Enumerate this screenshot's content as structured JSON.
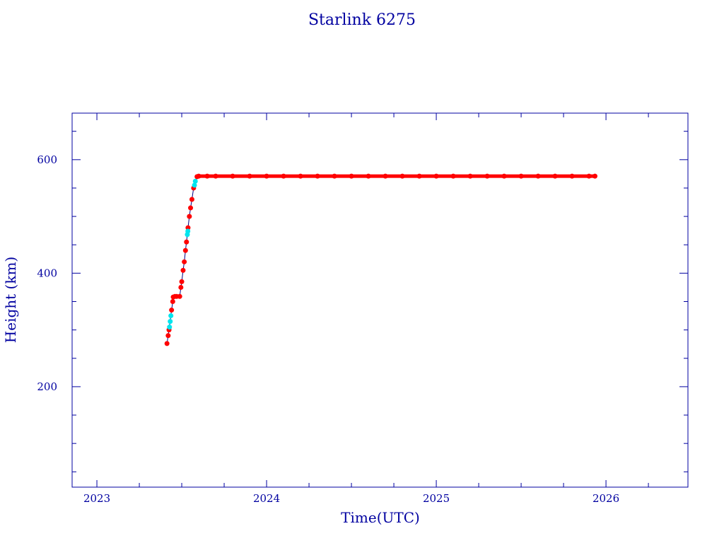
{
  "chart_data": {
    "type": "scatter",
    "title": "Starlink 6275",
    "xlabel": "Time(UTC)",
    "ylabel": "Height (km)",
    "xlim": [
      2022.854,
      2026.483
    ],
    "ylim": [
      23,
      682
    ],
    "xticks": [
      "2023",
      "2024",
      "2025",
      "2026"
    ],
    "xtick_values": [
      2023,
      2024,
      2025,
      2026
    ],
    "yticks": [
      "200",
      "400",
      "600"
    ],
    "ytick_values": [
      200,
      400,
      600
    ],
    "colors": {
      "axis": "#0000a0",
      "primary": "#ff0000",
      "secondary": "#00e5ee",
      "line": "#000080"
    },
    "series": [
      {
        "name": "tracked",
        "color": "#ff0000",
        "points": [
          [
            2023.413,
            276
          ],
          [
            2023.42,
            290
          ],
          [
            2023.425,
            300
          ],
          [
            2023.44,
            335
          ],
          [
            2023.447,
            350
          ],
          [
            2023.45,
            358
          ],
          [
            2023.46,
            359
          ],
          [
            2023.47,
            359
          ],
          [
            2023.488,
            359
          ],
          [
            2023.495,
            375
          ],
          [
            2023.5,
            385
          ],
          [
            2023.508,
            405
          ],
          [
            2023.515,
            420
          ],
          [
            2023.522,
            440
          ],
          [
            2023.528,
            455
          ],
          [
            2023.537,
            480
          ],
          [
            2023.545,
            500
          ],
          [
            2023.552,
            515
          ],
          [
            2023.56,
            530
          ],
          [
            2023.57,
            550
          ],
          [
            2023.59,
            570
          ],
          [
            2023.6,
            571
          ],
          [
            2023.65,
            571
          ],
          [
            2023.7,
            571
          ],
          [
            2023.8,
            571
          ],
          [
            2023.9,
            571
          ],
          [
            2024.0,
            571
          ],
          [
            2024.1,
            571
          ],
          [
            2024.2,
            571
          ],
          [
            2024.3,
            571
          ],
          [
            2024.4,
            571
          ],
          [
            2024.5,
            571
          ],
          [
            2024.6,
            571
          ],
          [
            2024.7,
            571
          ],
          [
            2024.8,
            571
          ],
          [
            2024.9,
            571
          ],
          [
            2025.0,
            571
          ],
          [
            2025.1,
            571
          ],
          [
            2025.2,
            571
          ],
          [
            2025.3,
            571
          ],
          [
            2025.4,
            571
          ],
          [
            2025.5,
            571
          ],
          [
            2025.6,
            571
          ],
          [
            2025.7,
            571
          ],
          [
            2025.8,
            571
          ],
          [
            2025.9,
            571
          ],
          [
            2025.935,
            571
          ]
        ]
      },
      {
        "name": "secondary",
        "color": "#00e5ee",
        "points": [
          [
            2023.428,
            305
          ],
          [
            2023.432,
            315
          ],
          [
            2023.436,
            325
          ],
          [
            2023.533,
            468
          ],
          [
            2023.536,
            474
          ],
          [
            2023.575,
            555
          ],
          [
            2023.58,
            562
          ]
        ]
      }
    ]
  }
}
